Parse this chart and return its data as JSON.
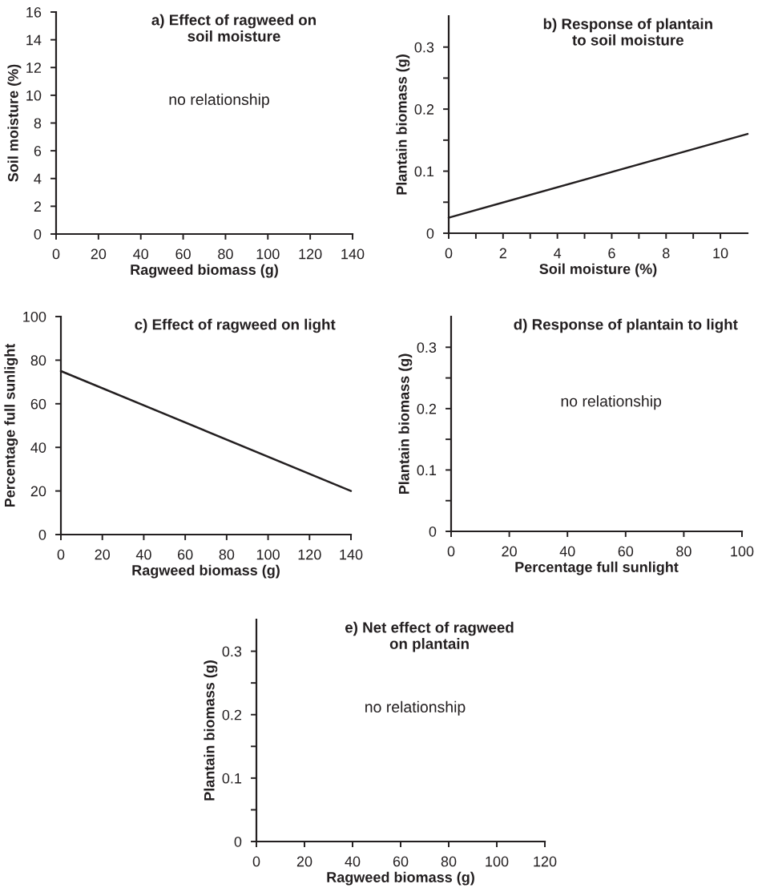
{
  "chart_data": [
    {
      "type": "line",
      "title": "a) Effect of ragweed on soil moisture",
      "xlabel": "Ragweed biomass (g)",
      "ylabel": "Soil moisture (%)",
      "xlim": [
        0,
        140
      ],
      "xticks": [
        0,
        20,
        40,
        60,
        80,
        100,
        120,
        140
      ],
      "ylim": [
        0,
        16
      ],
      "yticks": [
        0,
        2,
        4,
        6,
        8,
        10,
        12,
        14,
        16
      ],
      "annotations": [
        "no relationship"
      ]
    },
    {
      "type": "line",
      "title": "b) Response of plantain to soil moisture",
      "xlabel": "Soil moisture (%)",
      "ylabel": "Plantain biomass (g)",
      "xlim": [
        0,
        11
      ],
      "xticks": [
        0,
        {
          "value": 1,
          "label": null
        },
        2,
        {
          "value": 3,
          "label": null
        },
        4,
        {
          "value": 5,
          "label": null
        },
        6,
        {
          "value": 7,
          "label": null
        },
        8,
        {
          "value": 9,
          "label": null
        },
        10
      ],
      "ylim": [
        0,
        0.35
      ],
      "yticks": [
        0,
        {
          "value": 0.05,
          "label": null
        },
        0.1,
        {
          "value": 0.15,
          "label": null
        },
        0.2,
        {
          "value": 0.25,
          "label": null
        },
        0.3
      ],
      "series": [
        {
          "color": "#231f20",
          "x": [
            0,
            11
          ],
          "values": [
            0.025,
            0.16
          ]
        }
      ]
    },
    {
      "type": "line",
      "title": "c) Effect of ragweed on light",
      "xlabel": "Ragweed biomass (g)",
      "ylabel": "Percentage full sunlight",
      "xlim": [
        0,
        140
      ],
      "xticks": [
        0,
        20,
        40,
        60,
        80,
        100,
        120,
        140
      ],
      "ylim": [
        0,
        100
      ],
      "yticks": [
        0,
        20,
        40,
        60,
        80,
        100
      ],
      "series": [
        {
          "color": "#231f20",
          "x": [
            0,
            140
          ],
          "values": [
            75,
            20
          ]
        }
      ]
    },
    {
      "type": "line",
      "title": "d) Response of plantain to light",
      "xlabel": "Percentage full sunlight",
      "ylabel": "Plantain biomass (g)",
      "xlim": [
        0,
        100
      ],
      "xticks": [
        0,
        20,
        40,
        60,
        80,
        100
      ],
      "ylim": [
        0,
        0.35
      ],
      "yticks": [
        0,
        {
          "value": 0.05,
          "label": null
        },
        0.1,
        {
          "value": 0.15,
          "label": null
        },
        0.2,
        {
          "value": 0.25,
          "label": null
        },
        0.3
      ],
      "annotations": [
        "no relationship"
      ]
    },
    {
      "type": "line",
      "title": "e) Net effect of ragweed on plantain",
      "xlabel": "Ragweed biomass (g)",
      "ylabel": "Plantain biomass (g)",
      "xlim": [
        0,
        120
      ],
      "xticks": [
        0,
        20,
        40,
        60,
        80,
        100,
        120
      ],
      "ylim": [
        0,
        0.35
      ],
      "yticks": [
        0,
        {
          "value": 0.05,
          "label": null
        },
        0.1,
        {
          "value": 0.15,
          "label": null
        },
        0.2,
        {
          "value": 0.25,
          "label": null
        },
        0.3
      ],
      "annotations": [
        "no relationship"
      ]
    }
  ]
}
